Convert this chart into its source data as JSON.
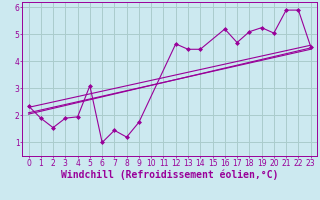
{
  "background_color": "#cce9f0",
  "grid_color": "#aacccc",
  "line_color": "#990099",
  "marker_color": "#990099",
  "xlabel": "Windchill (Refroidissement éolien,°C)",
  "xlabel_color": "#990099",
  "xlim": [
    -0.5,
    23.5
  ],
  "ylim": [
    0.5,
    6.2
  ],
  "yticks": [
    1,
    2,
    3,
    4,
    5,
    6
  ],
  "xticks": [
    0,
    1,
    2,
    3,
    4,
    5,
    6,
    7,
    8,
    9,
    10,
    11,
    12,
    13,
    14,
    15,
    16,
    17,
    18,
    19,
    20,
    21,
    22,
    23
  ],
  "series1_x": [
    0,
    1,
    2,
    3,
    4,
    5,
    6,
    7,
    8,
    9,
    12,
    13,
    14,
    16,
    17,
    18,
    19,
    20,
    21,
    22,
    23
  ],
  "series1_y": [
    2.35,
    1.9,
    1.55,
    1.9,
    1.95,
    3.1,
    1.0,
    1.45,
    1.2,
    1.75,
    4.65,
    4.45,
    4.45,
    5.2,
    4.7,
    5.1,
    5.25,
    5.05,
    5.9,
    5.9,
    4.55
  ],
  "series2_x": [
    0,
    23
  ],
  "series2_y": [
    2.1,
    4.45
  ],
  "series3_x": [
    0,
    23
  ],
  "series3_y": [
    2.3,
    4.6
  ],
  "series4_x": [
    0,
    23
  ],
  "series4_y": [
    2.05,
    4.5
  ],
  "tick_fontsize": 5.5,
  "xlabel_fontsize": 7.0
}
